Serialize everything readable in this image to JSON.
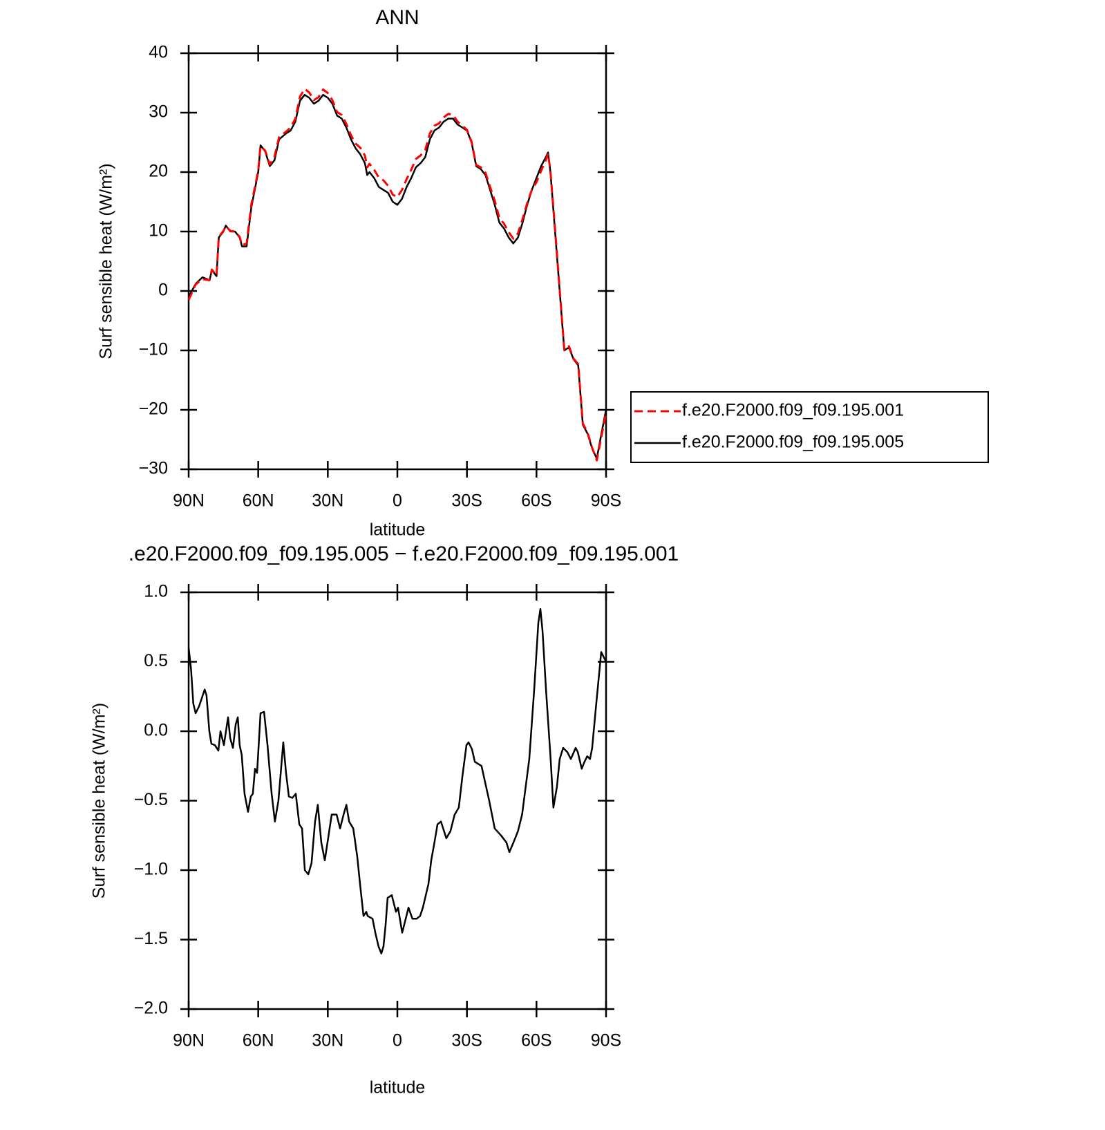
{
  "chart_data": [
    {
      "type": "line",
      "title": "ANN",
      "xlabel": "latitude",
      "ylabel": "Surf sensible heat (W/m²)",
      "xlim": [
        90,
        -90
      ],
      "xticks": [
        {
          "value": 90,
          "label": "90N"
        },
        {
          "value": 60,
          "label": "60N"
        },
        {
          "value": 30,
          "label": "30N"
        },
        0,
        {
          "value": -30,
          "label": "30S"
        },
        {
          "value": -60,
          "label": "60S"
        },
        {
          "value": -90,
          "label": "90S"
        }
      ],
      "ylim": [
        -30,
        40
      ],
      "yticks": [
        {
          "value": -30,
          "label": "−30"
        },
        {
          "value": -20,
          "label": "−20"
        },
        {
          "value": -10,
          "label": "−10"
        },
        0,
        10,
        20,
        30,
        40
      ],
      "legend": "outside right",
      "x": [
        90,
        87,
        84,
        81,
        80,
        78,
        77,
        75,
        74,
        72,
        70,
        68,
        67,
        65,
        63,
        61,
        60,
        59,
        57,
        55,
        53,
        51,
        48,
        46,
        44,
        42,
        40,
        38,
        36,
        34,
        32,
        30,
        28,
        26,
        24,
        22,
        20,
        18,
        16,
        14,
        13,
        12,
        10,
        8,
        6,
        4,
        2,
        0,
        -2,
        -4,
        -6,
        -8,
        -10,
        -12,
        -14,
        -16,
        -18,
        -20,
        -22,
        -24,
        -26,
        -28,
        -30,
        -32,
        -34,
        -36,
        -38,
        -40,
        -42,
        -44,
        -46,
        -48,
        -50,
        -52,
        -54,
        -56,
        -58,
        -60,
        -62,
        -64,
        -65,
        -66,
        -68,
        -70,
        -72,
        -74,
        -76,
        -78,
        -80,
        -82,
        -84,
        -86,
        -88,
        -90
      ],
      "series": [
        {
          "name": "f.e20.F2000.f09_f09.195.001",
          "color": "#ff0000",
          "dashed": true,
          "values": [
            -1.5,
            1.1,
            2.0,
            1.8,
            3.6,
            2.6,
            9.1,
            10.1,
            10.9,
            10.1,
            10.0,
            9.1,
            7.7,
            8.0,
            14.5,
            18.3,
            20.3,
            24.4,
            23.6,
            21.3,
            22.6,
            25.9,
            26.8,
            27.5,
            29.0,
            32.7,
            34.0,
            33.4,
            32.1,
            32.6,
            33.9,
            33.3,
            32.1,
            30.1,
            29.6,
            28.1,
            26.2,
            24.8,
            24.1,
            22.8,
            20.8,
            21.4,
            20.4,
            19.1,
            18.6,
            17.7,
            16.2,
            15.8,
            17.0,
            18.8,
            20.4,
            22.2,
            22.8,
            23.7,
            26.5,
            27.8,
            28.2,
            29.2,
            29.8,
            29.6,
            28.5,
            27.8,
            27.1,
            25.1,
            21.2,
            20.8,
            19.9,
            17.5,
            15.2,
            12.3,
            11.3,
            9.9,
            8.8,
            9.7,
            12.1,
            14.8,
            17.0,
            18.3,
            20.2,
            22.0,
            23.1,
            20.2,
            10.4,
            0.2,
            -9.9,
            -9.3,
            -11.4,
            -12.3,
            -22.3,
            -23.8,
            -26.4,
            -28.5,
            -24.5,
            -20.5
          ]
        },
        {
          "name": "f.e20.F2000.f09_f09.195.005",
          "color": "#000000",
          "dashed": false,
          "values": [
            -1,
            1.2,
            2.3,
            1.8,
            3.5,
            2.5,
            9,
            10,
            11,
            10,
            10,
            9,
            7.5,
            7.5,
            14,
            18,
            20,
            24.5,
            23.5,
            21,
            22,
            25.5,
            26.5,
            27,
            28.5,
            32,
            33,
            32.5,
            31.5,
            32,
            33,
            32.5,
            31.5,
            29.5,
            29,
            27.5,
            25.5,
            24,
            23,
            21.5,
            19.5,
            20,
            19,
            17.5,
            17,
            16.5,
            15,
            14.5,
            15.5,
            17.5,
            19,
            20.8,
            21.5,
            22.5,
            25.5,
            27,
            27.5,
            28.5,
            29,
            29,
            28,
            27.5,
            27,
            25,
            21,
            20.5,
            19.5,
            17,
            14.5,
            11.5,
            10.5,
            9,
            8,
            9,
            11.5,
            14.5,
            17,
            19,
            21,
            22.5,
            23.3,
            20,
            10,
            0,
            -10,
            -9.5,
            -11.5,
            -12.5,
            -22.5,
            -24,
            -26.5,
            -28.2,
            -24,
            -20
          ]
        }
      ]
    },
    {
      "type": "line",
      "title": ".e20.F2000.f09_f09.195.005 − f.e20.F2000.f09_f09.195.001",
      "xlabel": "latitude",
      "ylabel": "Surf sensible heat (W/m²)",
      "xlim": [
        90,
        -90
      ],
      "xticks": [
        {
          "value": 90,
          "label": "90N"
        },
        {
          "value": 60,
          "label": "60N"
        },
        {
          "value": 30,
          "label": "30N"
        },
        0,
        {
          "value": -30,
          "label": "30S"
        },
        {
          "value": -60,
          "label": "60S"
        },
        {
          "value": -90,
          "label": "90S"
        }
      ],
      "ylim": [
        -2,
        1
      ],
      "yticks": [
        {
          "value": -2,
          "label": "−2.0"
        },
        {
          "value": -1.5,
          "label": "−1.5"
        },
        {
          "value": -1,
          "label": "−1.0"
        },
        {
          "value": -0.5,
          "label": "−0.5"
        },
        {
          "value": 0,
          "label": "0.0"
        },
        0.5,
        {
          "value": 1,
          "label": "1.0"
        }
      ],
      "color": "#000000",
      "x": [
        90,
        89,
        88,
        87,
        85.5,
        83.1,
        82.3,
        81.1,
        80.2,
        78.7,
        77.2,
        76.3,
        74.8,
        73,
        72.1,
        70.9,
        69.7,
        68.8,
        68,
        67.1,
        65.9,
        64.4,
        63.2,
        62.3,
        61.4,
        60.5,
        59,
        57.5,
        56,
        54.2,
        52.8,
        51.3,
        49.2,
        48,
        46.8,
        45.3,
        43.8,
        42.3,
        41.1,
        39.9,
        38.4,
        37,
        35.5,
        34.3,
        32.8,
        31.3,
        28.3,
        26.2,
        24.7,
        23.2,
        22,
        20.8,
        19,
        17.3,
        16.1,
        14.6,
        13.4,
        12.8,
        10.7,
        9.5,
        8.1,
        6.9,
        6,
        5.1,
        4.2,
        2.4,
        0.6,
        -0.3,
        -2.1,
        -3.6,
        -4.8,
        -6.5,
        -8.3,
        -9.8,
        -11,
        -13.4,
        -14.6,
        -16,
        -17.3,
        -18.8,
        -21.1,
        -22.9,
        -24.7,
        -26.5,
        -28,
        -29.8,
        -30.7,
        -32.2,
        -33.4,
        -36.3,
        -39.6,
        -42,
        -44.7,
        -47,
        -48.3,
        -50.1,
        -52,
        -53.8,
        -56.9,
        -59,
        -60.8,
        -61.7,
        -62.6,
        -64.1,
        -66.1,
        -67.3,
        -68.8,
        -70,
        -71.5,
        -73.3,
        -74.8,
        -76.9,
        -77.8,
        -79.5,
        -80.7,
        -81.9,
        -83.1,
        -84,
        -85.5,
        -87.9,
        -90
      ],
      "values": [
        0.6,
        0.45,
        0.2,
        0.13,
        0.18,
        0.3,
        0.26,
        0,
        -0.09,
        -0.1,
        -0.14,
        0,
        -0.1,
        0.1,
        -0.05,
        -0.12,
        0.05,
        0.1,
        -0.1,
        -0.17,
        -0.45,
        -0.58,
        -0.47,
        -0.45,
        -0.27,
        -0.3,
        0.13,
        0.14,
        -0.1,
        -0.45,
        -0.65,
        -0.5,
        -0.08,
        -0.3,
        -0.47,
        -0.48,
        -0.45,
        -0.67,
        -0.7,
        -1.0,
        -1.03,
        -0.95,
        -0.65,
        -0.53,
        -0.8,
        -0.93,
        -0.6,
        -0.6,
        -0.7,
        -0.6,
        -0.53,
        -0.65,
        -0.7,
        -0.9,
        -1.1,
        -1.33,
        -1.3,
        -1.33,
        -1.35,
        -1.45,
        -1.55,
        -1.6,
        -1.55,
        -1.4,
        -1.2,
        -1.18,
        -1.3,
        -1.27,
        -1.45,
        -1.35,
        -1.27,
        -1.35,
        -1.35,
        -1.33,
        -1.27,
        -1.1,
        -0.93,
        -0.8,
        -0.67,
        -0.65,
        -0.77,
        -0.72,
        -0.6,
        -0.55,
        -0.33,
        -0.1,
        -0.08,
        -0.13,
        -0.22,
        -0.25,
        -0.5,
        -0.7,
        -0.75,
        -0.8,
        -0.87,
        -0.8,
        -0.72,
        -0.6,
        -0.2,
        0.3,
        0.78,
        0.88,
        0.72,
        0.3,
        -0.2,
        -0.55,
        -0.4,
        -0.2,
        -0.12,
        -0.15,
        -0.2,
        -0.12,
        -0.15,
        -0.27,
        -0.22,
        -0.18,
        -0.2,
        -0.12,
        0.15,
        0.57,
        0.5
      ]
    }
  ]
}
